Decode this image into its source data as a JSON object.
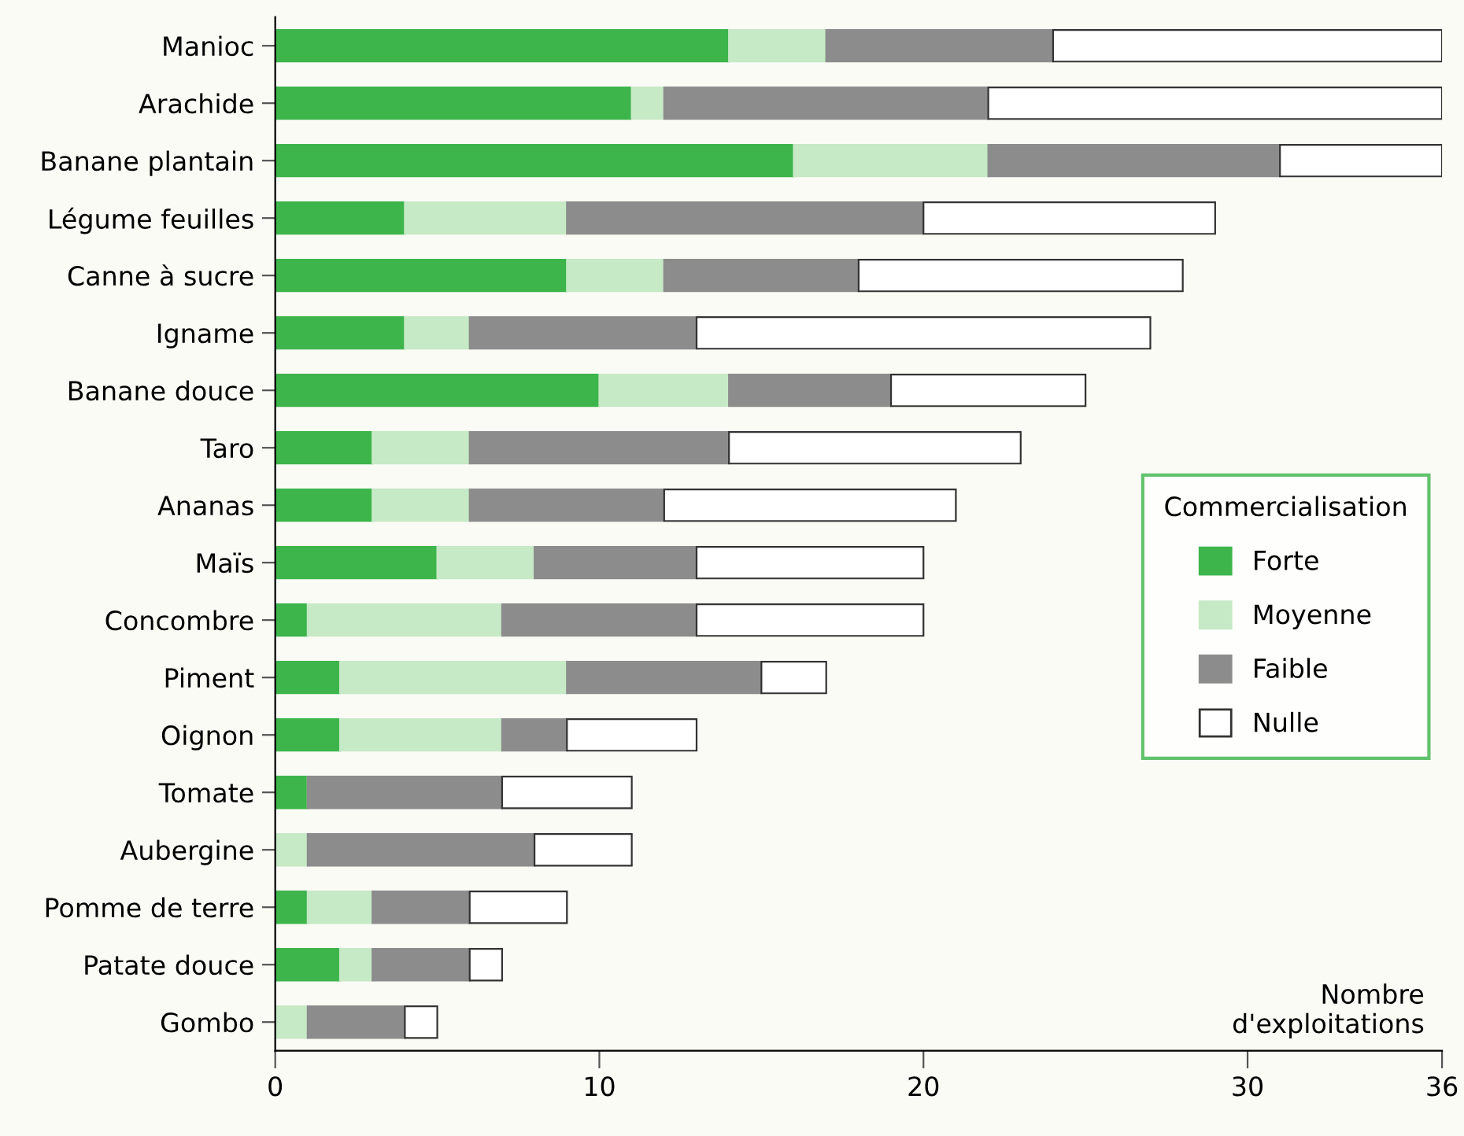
{
  "chart_data": {
    "type": "bar",
    "orientation": "horizontal",
    "stacked": true,
    "legend_title": "Commercialisation",
    "xlabel": "Nombre\nd'exploitations",
    "categories": [
      "Manioc",
      "Arachide",
      "Banane plantain",
      "Légume feuilles",
      "Canne à sucre",
      "Igname",
      "Banane douce",
      "Taro",
      "Ananas",
      "Maïs",
      "Concombre",
      "Piment",
      "Oignon",
      "Tomate",
      "Aubergine",
      "Pomme de terre",
      "Patate douce",
      "Gombo"
    ],
    "series": [
      {
        "name": "Forte",
        "color": "#3db54b",
        "values": [
          14,
          11,
          16,
          4,
          9,
          4,
          10,
          3,
          3,
          5,
          1,
          2,
          2,
          1,
          0,
          1,
          2,
          0
        ]
      },
      {
        "name": "Moyenne",
        "color": "#c6e9c6",
        "values": [
          3,
          1,
          6,
          5,
          3,
          2,
          4,
          3,
          3,
          3,
          6,
          7,
          5,
          0,
          1,
          2,
          1,
          1
        ]
      },
      {
        "name": "Faible",
        "color": "#8c8c8c",
        "values": [
          7,
          10,
          9,
          11,
          6,
          7,
          5,
          8,
          6,
          5,
          6,
          6,
          2,
          6,
          7,
          3,
          3,
          3
        ]
      },
      {
        "name": "Nulle",
        "color": "#ffffff",
        "values": [
          12,
          14,
          5,
          9,
          10,
          14,
          6,
          9,
          9,
          7,
          7,
          2,
          4,
          4,
          3,
          3,
          1,
          1
        ]
      }
    ],
    "xlim": [
      0,
      36
    ],
    "xticks": [
      0,
      10,
      20,
      30,
      36
    ],
    "legend": "right",
    "grid": false
  }
}
